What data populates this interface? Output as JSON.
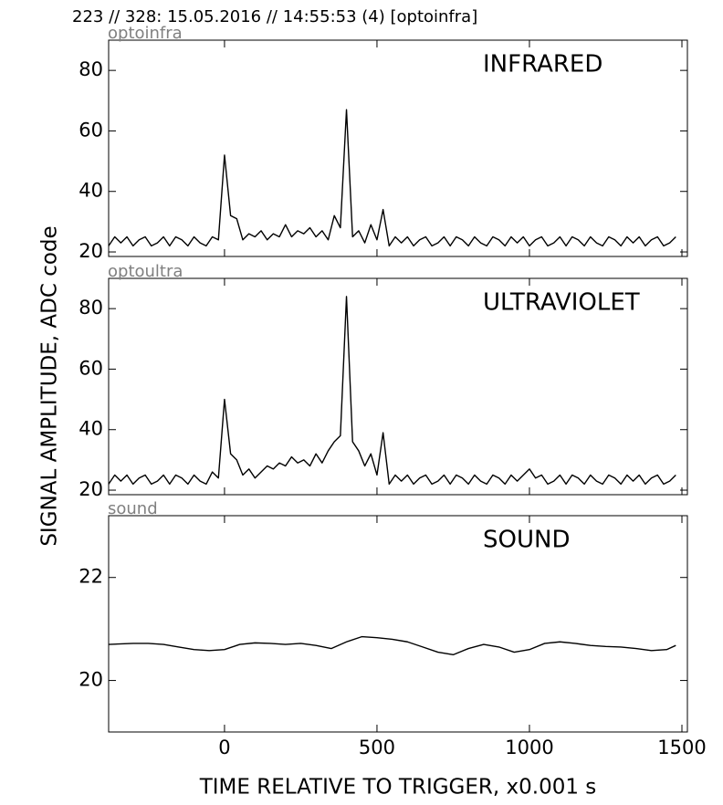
{
  "title": "223 // 328:   15.05.2016 // 14:55:53 (4)  [optoinfra]",
  "ylabel": "SIGNAL AMPLITUDE,  ADC code",
  "xlabel": "TIME RELATIVE TO TRIGGER,   x0.001 s",
  "chart_data": [
    {
      "type": "line",
      "label": "optoinfra",
      "annotation": "INFRARED",
      "color": "#000000",
      "x": [
        -380,
        -360,
        -340,
        -320,
        -300,
        -280,
        -260,
        -240,
        -220,
        -200,
        -180,
        -160,
        -140,
        -120,
        -100,
        -80,
        -60,
        -40,
        -20,
        0,
        20,
        40,
        60,
        80,
        100,
        120,
        140,
        160,
        180,
        200,
        220,
        240,
        260,
        280,
        300,
        320,
        340,
        360,
        380,
        400,
        420,
        440,
        460,
        480,
        500,
        520,
        540,
        560,
        580,
        600,
        620,
        640,
        660,
        680,
        700,
        720,
        740,
        760,
        780,
        800,
        820,
        840,
        860,
        880,
        900,
        920,
        940,
        960,
        980,
        1000,
        1020,
        1040,
        1060,
        1080,
        1100,
        1120,
        1140,
        1160,
        1180,
        1200,
        1220,
        1240,
        1260,
        1280,
        1300,
        1320,
        1340,
        1360,
        1380,
        1400,
        1420,
        1440,
        1460,
        1480
      ],
      "values": [
        22,
        25,
        23,
        25,
        22,
        24,
        25,
        22,
        23,
        25,
        22,
        25,
        24,
        22,
        25,
        23,
        22,
        25,
        24,
        52,
        32,
        31,
        24,
        26,
        25,
        27,
        24,
        26,
        25,
        29,
        25,
        27,
        26,
        28,
        25,
        27,
        24,
        32,
        28,
        67,
        25,
        27,
        23,
        29,
        24,
        34,
        22,
        25,
        23,
        25,
        22,
        24,
        25,
        22,
        23,
        25,
        22,
        25,
        24,
        22,
        25,
        23,
        22,
        25,
        24,
        22,
        25,
        23,
        25,
        22,
        24,
        25,
        22,
        23,
        25,
        22,
        25,
        24,
        22,
        25,
        23,
        22,
        25,
        24,
        22,
        25,
        23,
        25,
        22,
        24,
        25,
        22,
        23,
        25
      ],
      "xlim": [
        -380,
        1518
      ],
      "xticks": [
        0,
        500,
        1000,
        1500
      ],
      "ylim": [
        18.5,
        90
      ],
      "yticks": [
        20,
        40,
        60,
        80
      ]
    },
    {
      "type": "line",
      "label": "optoultra",
      "annotation": "ULTRAVIOLET",
      "color": "#000000",
      "x": [
        -380,
        -360,
        -340,
        -320,
        -300,
        -280,
        -260,
        -240,
        -220,
        -200,
        -180,
        -160,
        -140,
        -120,
        -100,
        -80,
        -60,
        -40,
        -20,
        0,
        20,
        40,
        60,
        80,
        100,
        120,
        140,
        160,
        180,
        200,
        220,
        240,
        260,
        280,
        300,
        320,
        340,
        360,
        380,
        400,
        420,
        440,
        460,
        480,
        500,
        520,
        540,
        560,
        580,
        600,
        620,
        640,
        660,
        680,
        700,
        720,
        740,
        760,
        780,
        800,
        820,
        840,
        860,
        880,
        900,
        920,
        940,
        960,
        980,
        1000,
        1020,
        1040,
        1060,
        1080,
        1100,
        1120,
        1140,
        1160,
        1180,
        1200,
        1220,
        1240,
        1260,
        1280,
        1300,
        1320,
        1340,
        1360,
        1380,
        1400,
        1420,
        1440,
        1460,
        1480
      ],
      "values": [
        22,
        25,
        23,
        25,
        22,
        24,
        25,
        22,
        23,
        25,
        22,
        25,
        24,
        22,
        25,
        23,
        22,
        26,
        24,
        50,
        32,
        30,
        25,
        27,
        24,
        26,
        28,
        27,
        29,
        28,
        31,
        29,
        30,
        28,
        32,
        29,
        33,
        36,
        38,
        84,
        36,
        33,
        28,
        32,
        25,
        39,
        22,
        25,
        23,
        25,
        22,
        24,
        25,
        22,
        23,
        25,
        22,
        25,
        24,
        22,
        25,
        23,
        22,
        25,
        24,
        22,
        25,
        23,
        25,
        27,
        24,
        25,
        22,
        23,
        25,
        22,
        25,
        24,
        22,
        25,
        23,
        22,
        25,
        24,
        22,
        25,
        23,
        25,
        22,
        24,
        25,
        22,
        23,
        25
      ],
      "xlim": [
        -380,
        1518
      ],
      "xticks": [
        0,
        500,
        1000,
        1500
      ],
      "ylim": [
        18.5,
        90
      ],
      "yticks": [
        20,
        40,
        60,
        80
      ]
    },
    {
      "type": "line",
      "label": "sound",
      "annotation": "SOUND",
      "color": "#000000",
      "x": [
        -380,
        -300,
        -250,
        -200,
        -150,
        -100,
        -50,
        0,
        50,
        100,
        150,
        200,
        250,
        300,
        350,
        400,
        450,
        500,
        550,
        600,
        650,
        700,
        750,
        800,
        850,
        900,
        950,
        1000,
        1050,
        1100,
        1150,
        1200,
        1250,
        1300,
        1350,
        1400,
        1450,
        1480
      ],
      "values": [
        20.7,
        20.72,
        20.72,
        20.7,
        20.65,
        20.6,
        20.58,
        20.6,
        20.7,
        20.73,
        20.72,
        20.7,
        20.72,
        20.68,
        20.62,
        20.75,
        20.85,
        20.83,
        20.8,
        20.75,
        20.65,
        20.55,
        20.5,
        20.62,
        20.7,
        20.65,
        20.55,
        20.6,
        20.72,
        20.75,
        20.72,
        20.68,
        20.66,
        20.65,
        20.62,
        20.58,
        20.6,
        20.68
      ],
      "xlim": [
        -380,
        1518
      ],
      "xticks": [
        0,
        500,
        1000,
        1500
      ],
      "ylim": [
        19,
        23.2
      ],
      "yticks": [
        20,
        22
      ]
    }
  ]
}
